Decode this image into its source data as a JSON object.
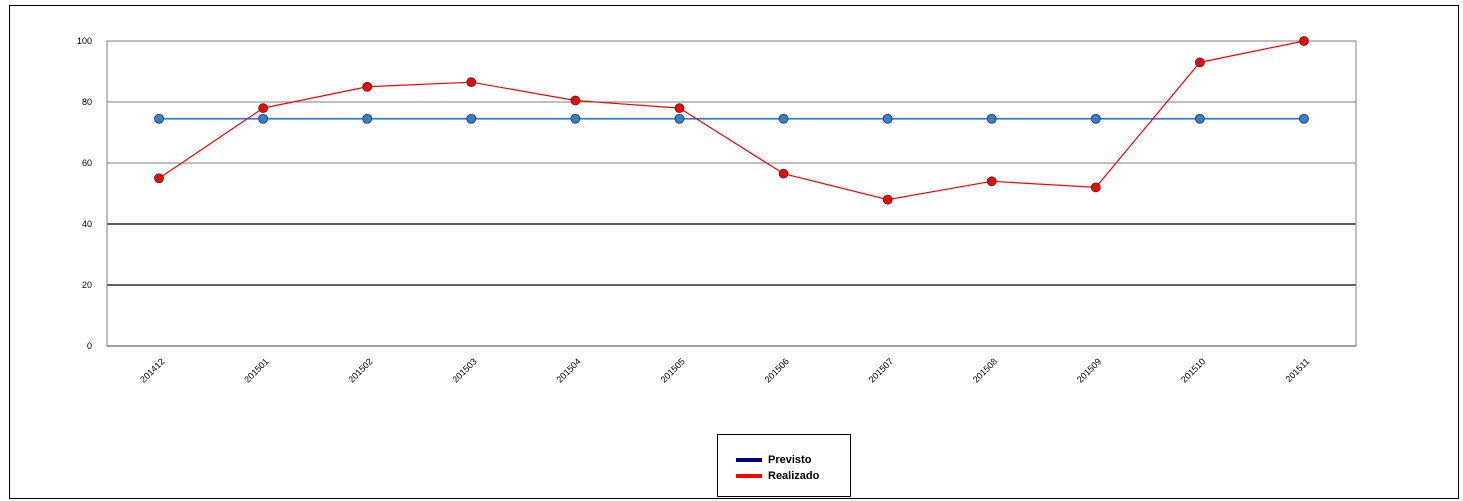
{
  "chart_data": {
    "type": "line",
    "categories": [
      "201412",
      "201501",
      "201502",
      "201503",
      "201504",
      "201505",
      "201506",
      "201507",
      "201508",
      "201509",
      "201510",
      "201511"
    ],
    "series": [
      {
        "name": "Previsto",
        "values": [
          74.5,
          74.5,
          74.5,
          74.5,
          74.5,
          74.5,
          74.5,
          74.5,
          74.5,
          74.5,
          74.5,
          74.5
        ],
        "color": "#2f7fd9",
        "legend_color": "#000080"
      },
      {
        "name": "Realizado",
        "values": [
          55,
          78,
          85,
          86.5,
          80.5,
          78,
          56.5,
          48,
          54,
          52,
          93,
          100
        ],
        "color": "#ff0000",
        "legend_color": "#ff0000"
      }
    ],
    "ylim": [
      0,
      100
    ],
    "yticks": [
      0,
      20,
      40,
      60,
      80,
      100
    ],
    "grid": true,
    "legend_position": "bottom-center",
    "title": "",
    "xlabel": "",
    "ylabel": ""
  }
}
